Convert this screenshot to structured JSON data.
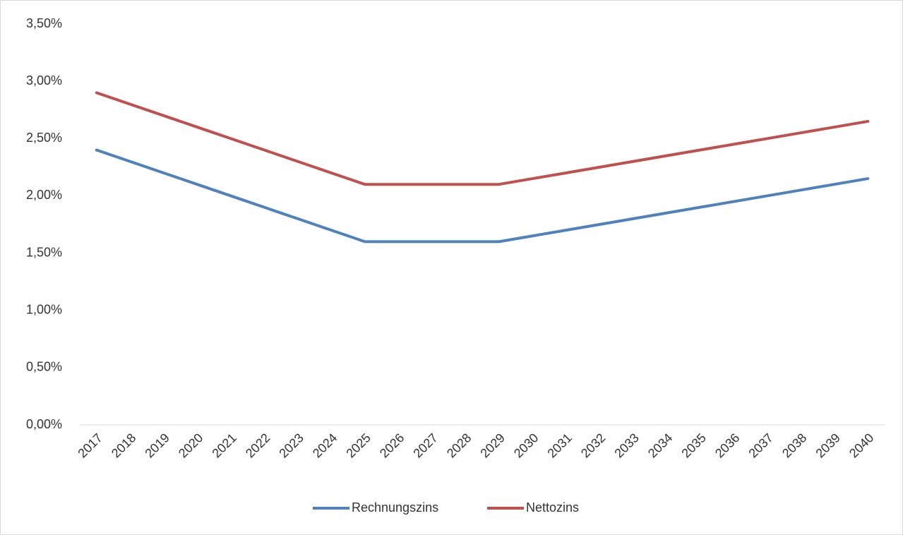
{
  "chart_data": {
    "type": "line",
    "categories": [
      "2017",
      "2018",
      "2019",
      "2020",
      "2021",
      "2022",
      "2023",
      "2024",
      "2025",
      "2026",
      "2027",
      "2028",
      "2029",
      "2030",
      "2031",
      "2032",
      "2033",
      "2034",
      "2035",
      "2036",
      "2037",
      "2038",
      "2039",
      "2040"
    ],
    "series": [
      {
        "name": "Rechnungszins",
        "color": "#4f81bd",
        "values": [
          2.4,
          2.3,
          2.2,
          2.1,
          2.0,
          1.9,
          1.8,
          1.7,
          1.6,
          1.6,
          1.6,
          1.6,
          1.6,
          1.65,
          1.7,
          1.75,
          1.8,
          1.85,
          1.9,
          1.95,
          2.0,
          2.05,
          2.1,
          2.15
        ]
      },
      {
        "name": "Nettozins",
        "color": "#c0504d",
        "values": [
          2.9,
          2.8,
          2.7,
          2.6,
          2.5,
          2.4,
          2.3,
          2.2,
          2.1,
          2.1,
          2.1,
          2.1,
          2.1,
          2.15,
          2.2,
          2.25,
          2.3,
          2.35,
          2.4,
          2.45,
          2.5,
          2.55,
          2.6,
          2.65
        ]
      }
    ],
    "ylim": [
      0,
      3.5
    ],
    "yticks": [
      {
        "value": 0,
        "label": "0,00%"
      },
      {
        "value": 0.5,
        "label": "0,50%"
      },
      {
        "value": 1,
        "label": "1,00%"
      },
      {
        "value": 1.5,
        "label": "1,50%"
      },
      {
        "value": 2,
        "label": "2,00%"
      },
      {
        "value": 2.5,
        "label": "2,50%"
      },
      {
        "value": 3,
        "label": "3,00%"
      },
      {
        "value": 3.5,
        "label": "3,50%"
      }
    ],
    "grid": false,
    "legend": "bottom"
  }
}
